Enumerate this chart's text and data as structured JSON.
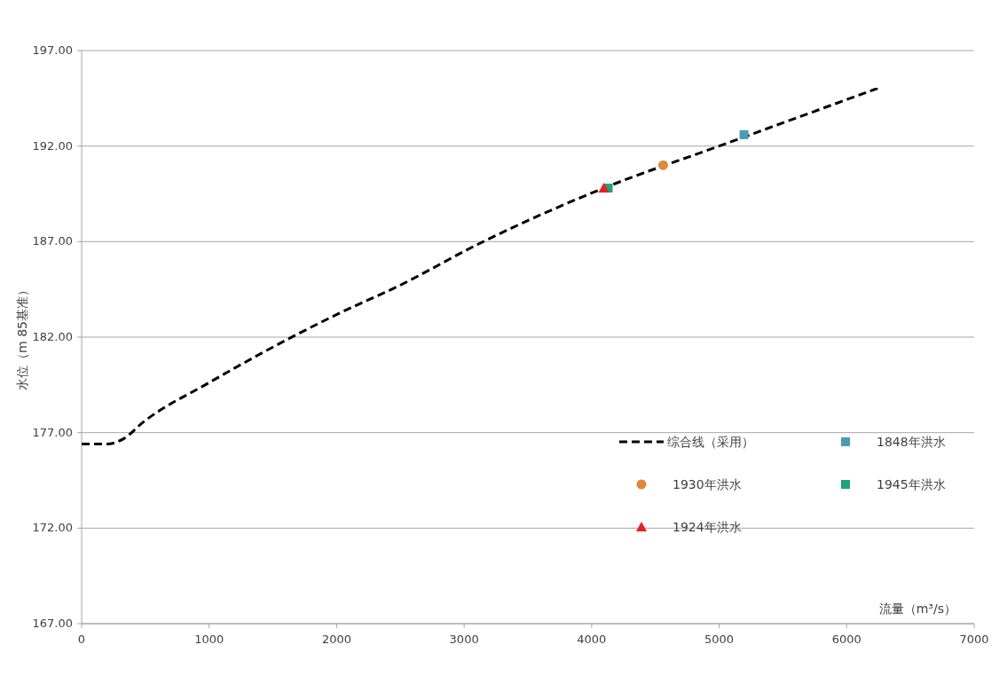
{
  "chart_data": {
    "type": "line",
    "xlabel": "流量（m³/s）",
    "ylabel": "水位（m 85基准）",
    "xlim": [
      0,
      7000
    ],
    "xticks": [
      0,
      1000,
      2000,
      3000,
      4000,
      5000,
      6000,
      7000
    ],
    "ylim": [
      167,
      197
    ],
    "yticks": [
      {
        "value": 167,
        "label": "167.00"
      },
      {
        "value": 172,
        "label": "172.00"
      },
      {
        "value": 177,
        "label": "177.00"
      },
      {
        "value": 182,
        "label": "182.00"
      },
      {
        "value": 187,
        "label": "187.00"
      },
      {
        "value": 192,
        "label": "192.00"
      },
      {
        "value": 197,
        "label": "197.00"
      }
    ],
    "grid": "y",
    "legend": "bottom right",
    "series": [
      {
        "name": "综合线（采用）",
        "color": "#000000",
        "line_style": "dashed",
        "marker": "none",
        "x": [
          0,
          195,
          334,
          474,
          996,
          2006,
          2493,
          3120,
          4095,
          5000,
          6253
        ],
        "values": [
          176.4,
          176.4,
          176.7,
          177.5,
          179.6,
          183.2,
          184.7,
          186.9,
          189.8,
          192.0,
          195.05
        ]
      },
      {
        "name": "1848年洪水",
        "type": "scatter",
        "color": "#4a9bb5",
        "marker": "square",
        "x": [
          5195
        ],
        "values": [
          192.6
        ]
      },
      {
        "name": "1930年洪水",
        "type": "scatter",
        "color": "#e0883a",
        "marker": "circle",
        "x": [
          4561
        ],
        "values": [
          191.0
        ]
      },
      {
        "name": "1945年洪水",
        "type": "scatter",
        "color": "#1fa37a",
        "marker": "square",
        "x": [
          4130
        ],
        "values": [
          189.8
        ]
      },
      {
        "name": "1924年洪水",
        "type": "scatter",
        "color": "#e8201e",
        "marker": "triangle",
        "x": [
          4095
        ],
        "values": [
          189.8
        ]
      }
    ]
  }
}
